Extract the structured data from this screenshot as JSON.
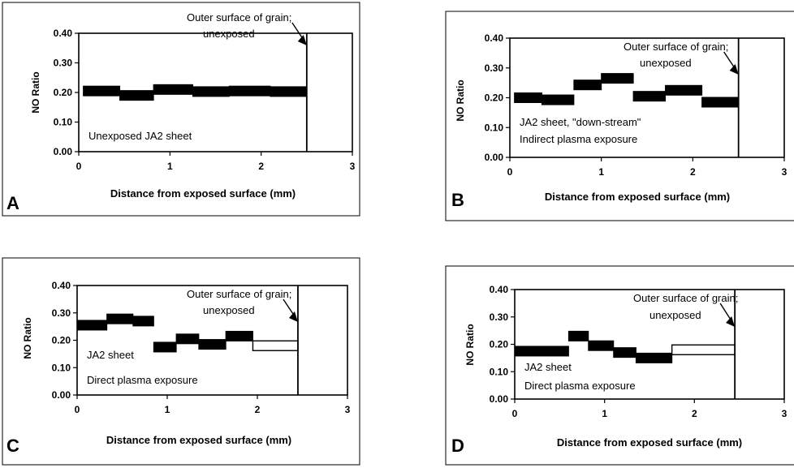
{
  "chart_data": [
    {
      "panel": "A",
      "type": "bar",
      "xlabel": "Distance from exposed surface (mm)",
      "ylabel": "NO Ratio",
      "xlim": [
        0,
        3
      ],
      "ylim": [
        0,
        0.4
      ],
      "xticks": [
        "0",
        "1",
        "2",
        "3"
      ],
      "yticks": [
        "0.00",
        "0.10",
        "0.20",
        "0.30",
        "0.40"
      ],
      "annotation": [
        "Outer surface of grain;",
        "unexposed"
      ],
      "surface_x": 2.5,
      "sample_label": [
        "Unexposed JA2 sheet"
      ],
      "segments": [
        {
          "x0": 0.05,
          "x1": 0.45,
          "y": 0.205,
          "filled": true
        },
        {
          "x0": 0.45,
          "x1": 0.82,
          "y": 0.19,
          "filled": true
        },
        {
          "x0": 0.82,
          "x1": 1.25,
          "y": 0.21,
          "filled": true
        },
        {
          "x0": 1.25,
          "x1": 1.65,
          "y": 0.203,
          "filled": true
        },
        {
          "x0": 1.65,
          "x1": 2.1,
          "y": 0.205,
          "filled": true
        },
        {
          "x0": 2.1,
          "x1": 2.5,
          "y": 0.203,
          "filled": true
        }
      ]
    },
    {
      "panel": "B",
      "type": "bar",
      "xlabel": "Distance from exposed surface (mm)",
      "ylabel": "NO Ratio",
      "xlim": [
        0,
        3
      ],
      "ylim": [
        0,
        0.4
      ],
      "xticks": [
        "0",
        "1",
        "2",
        "3"
      ],
      "yticks": [
        "0.00",
        "0.10",
        "0.20",
        "0.30",
        "0.40"
      ],
      "annotation": [
        "Outer surface of grain;",
        "unexposed"
      ],
      "surface_x": 2.5,
      "sample_label": [
        "JA2 sheet, \"down-stream\"",
        "Indirect plasma exposure"
      ],
      "segments": [
        {
          "x0": 0.05,
          "x1": 0.35,
          "y": 0.2,
          "filled": true
        },
        {
          "x0": 0.35,
          "x1": 0.7,
          "y": 0.193,
          "filled": true
        },
        {
          "x0": 0.7,
          "x1": 1.0,
          "y": 0.243,
          "filled": true
        },
        {
          "x0": 1.0,
          "x1": 1.35,
          "y": 0.265,
          "filled": true
        },
        {
          "x0": 1.35,
          "x1": 1.7,
          "y": 0.205,
          "filled": true
        },
        {
          "x0": 1.7,
          "x1": 2.1,
          "y": 0.225,
          "filled": true
        },
        {
          "x0": 2.1,
          "x1": 2.5,
          "y": 0.185,
          "filled": true
        }
      ]
    },
    {
      "panel": "C",
      "type": "bar",
      "xlabel": "Distance from exposed surface (mm)",
      "ylabel": "NO Ratio",
      "xlim": [
        0,
        3
      ],
      "ylim": [
        0,
        0.4
      ],
      "xticks": [
        "0",
        "1",
        "2",
        "3"
      ],
      "yticks": [
        "0.00",
        "0.10",
        "0.20",
        "0.30",
        "0.40"
      ],
      "annotation": [
        "Outer surface of grain;",
        "unexposed"
      ],
      "surface_x": 2.45,
      "sample_label": [
        "JA2 sheet",
        "Direct plasma exposure"
      ],
      "segments": [
        {
          "x0": 0.0,
          "x1": 0.33,
          "y": 0.255,
          "filled": true
        },
        {
          "x0": 0.33,
          "x1": 0.62,
          "y": 0.278,
          "filled": true
        },
        {
          "x0": 0.62,
          "x1": 0.85,
          "y": 0.27,
          "filled": true
        },
        {
          "x0": 0.85,
          "x1": 1.1,
          "y": 0.175,
          "filled": true
        },
        {
          "x0": 1.1,
          "x1": 1.35,
          "y": 0.205,
          "filled": true
        },
        {
          "x0": 1.35,
          "x1": 1.65,
          "y": 0.185,
          "filled": true
        },
        {
          "x0": 1.65,
          "x1": 1.95,
          "y": 0.215,
          "filled": true
        },
        {
          "x0": 1.95,
          "x1": 2.45,
          "y": 0.18,
          "filled": false
        }
      ]
    },
    {
      "panel": "D",
      "type": "bar",
      "xlabel": "Distance from exposed surface (mm)",
      "ylabel": "NO Ratio",
      "xlim": [
        0,
        3
      ],
      "ylim": [
        0,
        0.4
      ],
      "xticks": [
        "0",
        "1",
        "2",
        "3"
      ],
      "yticks": [
        "0.00",
        "0.10",
        "0.20",
        "0.30",
        "0.40"
      ],
      "annotation": [
        "Outer surface of grain;",
        "unexposed"
      ],
      "surface_x": 2.45,
      "sample_label": [
        "JA2 sheet",
        "Direct plasma exposure"
      ],
      "segments": [
        {
          "x0": 0.0,
          "x1": 0.6,
          "y": 0.175,
          "filled": true
        },
        {
          "x0": 0.6,
          "x1": 0.82,
          "y": 0.23,
          "filled": true
        },
        {
          "x0": 0.82,
          "x1": 1.1,
          "y": 0.195,
          "filled": true
        },
        {
          "x0": 1.1,
          "x1": 1.35,
          "y": 0.17,
          "filled": true
        },
        {
          "x0": 1.35,
          "x1": 1.75,
          "y": 0.15,
          "filled": true
        },
        {
          "x0": 1.75,
          "x1": 2.45,
          "y": 0.18,
          "filled": false
        }
      ]
    }
  ]
}
